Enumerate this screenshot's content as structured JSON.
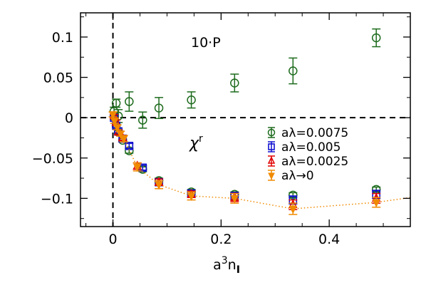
{
  "chart_data": {
    "type": "scatter",
    "xlabel": "a³n_I",
    "xlabel_main": "a",
    "xlabel_sup": "3",
    "xlabel_rest": "n",
    "xlabel_sub": "I",
    "ylabel": "",
    "xlim": [
      -0.06,
      0.55
    ],
    "ylim": [
      -0.135,
      0.13
    ],
    "x_ticks": [
      0,
      0.2,
      0.4
    ],
    "x_tick_labels": [
      "0",
      "0.2",
      "0.4"
    ],
    "y_ticks": [
      0.1,
      0.05,
      0,
      -0.05,
      -0.1
    ],
    "y_tick_labels": [
      "0.1",
      "0.05",
      "0",
      "−0.05",
      "−0.1"
    ],
    "grid": false,
    "reference_lines": {
      "x": 0,
      "y": 0,
      "style": "dashed"
    },
    "annotations": [
      {
        "text": "10·P",
        "x": 0.2,
        "y": 0.097
      },
      {
        "text_main": "χ",
        "text_sup": "r",
        "x": 0.22,
        "y": -0.03
      }
    ],
    "legend_position": "right",
    "series": [
      {
        "name": "aλ=0.0075",
        "marker": "circle",
        "color": "#1d6b1d",
        "x": [
          0.002,
          0.006,
          0.01,
          0.03,
          0.055,
          0.085,
          0.145,
          0.225,
          0.333,
          0.487
        ],
        "y": [
          0.008,
          0.018,
          0.002,
          0.02,
          -0.003,
          0.012,
          0.022,
          0.043,
          0.058,
          0.099
        ],
        "err": [
          0.005,
          0.005,
          0.008,
          0.012,
          0.01,
          0.013,
          0.01,
          0.011,
          0.016,
          0.011
        ]
      },
      {
        "name": "aλ=0.0075",
        "marker": "circle",
        "color": "#1d6b1d",
        "x": [
          0.002,
          0.006,
          0.01,
          0.018,
          0.03,
          0.055,
          0.085,
          0.145,
          0.225,
          0.333,
          0.487
        ],
        "y": [
          0.001,
          -0.01,
          -0.018,
          -0.028,
          -0.041,
          -0.064,
          -0.078,
          -0.092,
          -0.095,
          -0.096,
          -0.089
        ],
        "err": [
          0.002,
          0.002,
          0.002,
          0.002,
          0.003,
          0.003,
          0.003,
          0.003,
          0.003,
          0.003,
          0.003
        ]
      },
      {
        "name": "aλ=0.005",
        "marker": "square",
        "color": "#1010d0",
        "x": [
          0.002,
          0.006,
          0.01,
          0.018,
          0.03,
          0.055,
          0.085,
          0.145,
          0.225,
          0.333,
          0.487
        ],
        "y": [
          0.0,
          -0.01,
          -0.017,
          -0.026,
          -0.035,
          -0.062,
          -0.08,
          -0.094,
          -0.097,
          -0.102,
          -0.095
        ],
        "err": [
          0.002,
          0.002,
          0.002,
          0.002,
          0.003,
          0.003,
          0.004,
          0.004,
          0.004,
          0.005,
          0.005
        ]
      },
      {
        "name": "aλ=0.0025",
        "marker": "triangle",
        "color": "#e00000",
        "x": [
          0.002,
          0.006,
          0.01,
          0.018,
          0.045,
          0.085,
          0.145,
          0.225,
          0.333,
          0.487
        ],
        "y": [
          0.002,
          -0.006,
          -0.018,
          -0.025,
          -0.06,
          -0.08,
          -0.095,
          -0.099,
          -0.108,
          -0.1
        ],
        "err": [
          0.002,
          0.003,
          0.003,
          0.003,
          0.004,
          0.004,
          0.004,
          0.005,
          0.006,
          0.006
        ]
      },
      {
        "name": "aλ→0",
        "marker": "triangle-down",
        "color": "#f08a00",
        "connected": true,
        "x": [
          0.0,
          0.003,
          0.008,
          0.014,
          0.02,
          0.045,
          0.085,
          0.145,
          0.225,
          0.333,
          0.487,
          0.55
        ],
        "y": [
          0.004,
          -0.004,
          -0.012,
          -0.02,
          -0.026,
          -0.061,
          -0.083,
          -0.097,
          -0.1,
          -0.113,
          -0.105,
          -0.099
        ],
        "err": [
          0.003,
          0.003,
          0.003,
          0.003,
          0.004,
          0.005,
          0.005,
          0.005,
          0.006,
          0.007,
          0.006,
          0.0
        ]
      }
    ],
    "legend": [
      {
        "label": "aλ=0.0075",
        "marker": "circle",
        "color": "#1d6b1d"
      },
      {
        "label": "aλ=0.005",
        "marker": "square",
        "color": "#1010d0"
      },
      {
        "label": "aλ=0.0025",
        "marker": "triangle",
        "color": "#e00000"
      },
      {
        "label": "aλ→0",
        "marker": "triangle-down",
        "color": "#f08a00"
      }
    ]
  }
}
